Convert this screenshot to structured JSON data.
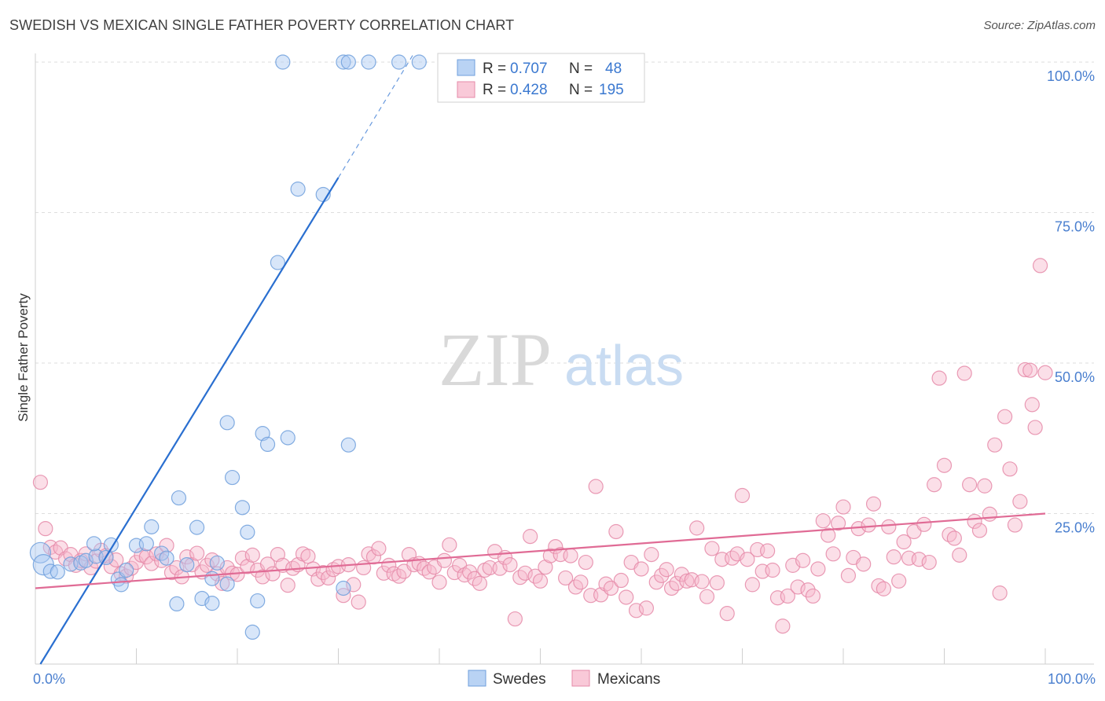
{
  "title": "SWEDISH VS MEXICAN SINGLE FATHER POVERTY CORRELATION CHART",
  "source": "Source: ZipAtlas.com",
  "watermark": {
    "zip": "ZIP",
    "atlas": "atlas"
  },
  "chart_data": {
    "type": "scatter",
    "ylabel": "Single Father Poverty",
    "xlabel": "",
    "xlim": [
      0,
      100
    ],
    "ylim": [
      0,
      100
    ],
    "x_tick_labels": {
      "min": "0.0%",
      "max": "100.0%"
    },
    "y_tick_labels": [
      "25.0%",
      "50.0%",
      "75.0%",
      "100.0%"
    ],
    "y_ticks": [
      25,
      50,
      75,
      100
    ],
    "grid": "horizontal dashed",
    "legend_top": [
      {
        "r_label": "R =",
        "r": "0.707",
        "n_label": "N =",
        "n": "48",
        "color": "#a9c8f2"
      },
      {
        "r_label": "R =",
        "r": "0.428",
        "n_label": "N =",
        "n": "195",
        "color": "#f7b8cc"
      }
    ],
    "series": [
      {
        "name": "Swedes",
        "color": "#a9c8f2",
        "stroke": "#6f9fdc",
        "trend": {
          "x0": 0.5,
          "y0": 0,
          "x1": 30,
          "y1": 80.8,
          "dash_to_x": 37.5,
          "dash_to_y": 101.5,
          "color": "#2a6fd0"
        },
        "points": [
          [
            0.5,
            18.5
          ],
          [
            0.8,
            16.5
          ],
          [
            1.5,
            15.4
          ],
          [
            2.2,
            15.3
          ],
          [
            3.5,
            16.6
          ],
          [
            4.5,
            16.8
          ],
          [
            5,
            17.2
          ],
          [
            6,
            17.9
          ],
          [
            7,
            17.7
          ],
          [
            5.8,
            20.0
          ],
          [
            7.5,
            19.8
          ],
          [
            8.2,
            14.1
          ],
          [
            9,
            15.6
          ],
          [
            8.5,
            13.2
          ],
          [
            10,
            19.7
          ],
          [
            11,
            20.0
          ],
          [
            12.5,
            18.4
          ],
          [
            13,
            17.6
          ],
          [
            11.5,
            22.8
          ],
          [
            14,
            10.0
          ],
          [
            14.2,
            27.6
          ],
          [
            15,
            16.5
          ],
          [
            16,
            22.7
          ],
          [
            16.5,
            10.9
          ],
          [
            17.5,
            10.1
          ],
          [
            17.5,
            14.2
          ],
          [
            18,
            16.8
          ],
          [
            19,
            13.3
          ],
          [
            19,
            40.1
          ],
          [
            19.5,
            31.0
          ],
          [
            20.5,
            26.0
          ],
          [
            21,
            21.9
          ],
          [
            21.5,
            5.3
          ],
          [
            22,
            10.5
          ],
          [
            22.5,
            38.3
          ],
          [
            23,
            36.5
          ],
          [
            24,
            66.7
          ],
          [
            25,
            37.6
          ],
          [
            26,
            78.9
          ],
          [
            28.5,
            78.0
          ],
          [
            31,
            36.4
          ],
          [
            24.5,
            100
          ],
          [
            30.5,
            100
          ],
          [
            31,
            100
          ],
          [
            33,
            100
          ],
          [
            36,
            100
          ],
          [
            38,
            100
          ],
          [
            30.5,
            12.6
          ]
        ]
      },
      {
        "name": "Mexicans",
        "color": "#f7b8cc",
        "stroke": "#e58aa8",
        "trend": {
          "x0": 0,
          "y0": 12.6,
          "x1": 100,
          "y1": 25.0,
          "color": "#e06b95"
        },
        "points": [
          [
            0.5,
            30.2
          ],
          [
            1.0,
            22.5
          ],
          [
            1.5,
            19.4
          ],
          [
            2.0,
            18.6
          ],
          [
            2.5,
            19.3
          ],
          [
            3.0,
            17.5
          ],
          [
            3.5,
            18.2
          ],
          [
            4.0,
            16.4
          ],
          [
            4.5,
            17.2
          ],
          [
            5.0,
            18.3
          ],
          [
            5.5,
            16.0
          ],
          [
            6.0,
            17.1
          ],
          [
            6.5,
            18.9
          ],
          [
            7.0,
            18.0
          ],
          [
            7.5,
            16.2
          ],
          [
            8.0,
            17.3
          ],
          [
            8.5,
            15.0
          ],
          [
            9.0,
            14.6
          ],
          [
            9.5,
            15.9
          ],
          [
            10.0,
            16.9
          ],
          [
            10.5,
            18.1
          ],
          [
            11.0,
            17.8
          ],
          [
            11.5,
            16.7
          ],
          [
            12.0,
            18.3
          ],
          [
            12.5,
            17.2
          ],
          [
            13.0,
            19.7
          ],
          [
            13.5,
            15.2
          ],
          [
            14.0,
            16.0
          ],
          [
            14.5,
            14.5
          ],
          [
            15.0,
            17.8
          ],
          [
            15.5,
            16.5
          ],
          [
            16.0,
            18.4
          ],
          [
            16.5,
            15.3
          ],
          [
            17.0,
            16.4
          ],
          [
            17.5,
            17.3
          ],
          [
            18.0,
            15.0
          ],
          [
            18.5,
            13.4
          ],
          [
            19.0,
            16.0
          ],
          [
            19.5,
            15.1
          ],
          [
            20.0,
            14.9
          ],
          [
            20.5,
            17.6
          ],
          [
            21.0,
            16.2
          ],
          [
            21.5,
            18.1
          ],
          [
            22.0,
            15.6
          ],
          [
            22.5,
            14.5
          ],
          [
            23.0,
            16.6
          ],
          [
            23.5,
            15.0
          ],
          [
            24.0,
            18.2
          ],
          [
            24.5,
            16.4
          ],
          [
            25.0,
            13.1
          ],
          [
            25.5,
            15.9
          ],
          [
            26.0,
            16.5
          ],
          [
            26.5,
            18.3
          ],
          [
            27.0,
            17.9
          ],
          [
            27.5,
            15.8
          ],
          [
            28.0,
            14.1
          ],
          [
            28.5,
            15.2
          ],
          [
            29.0,
            14.3
          ],
          [
            29.5,
            15.7
          ],
          [
            30.0,
            16.2
          ],
          [
            30.5,
            11.4
          ],
          [
            31.0,
            16.5
          ],
          [
            31.5,
            13.2
          ],
          [
            32.0,
            10.3
          ],
          [
            32.5,
            16.0
          ],
          [
            33.0,
            18.3
          ],
          [
            33.5,
            17.8
          ],
          [
            34.0,
            19.2
          ],
          [
            34.5,
            15.1
          ],
          [
            35.0,
            16.4
          ],
          [
            35.5,
            15.0
          ],
          [
            36.0,
            14.6
          ],
          [
            36.5,
            15.4
          ],
          [
            37.0,
            18.2
          ],
          [
            37.5,
            16.5
          ],
          [
            38.0,
            16.7
          ],
          [
            38.5,
            15.9
          ],
          [
            39.0,
            15.3
          ],
          [
            39.5,
            16.1
          ],
          [
            40.0,
            13.6
          ],
          [
            40.5,
            17.2
          ],
          [
            41.0,
            19.8
          ],
          [
            41.5,
            15.2
          ],
          [
            42.0,
            16.4
          ],
          [
            42.5,
            14.8
          ],
          [
            43.0,
            15.3
          ],
          [
            43.5,
            14.2
          ],
          [
            44.0,
            13.4
          ],
          [
            44.5,
            15.6
          ],
          [
            45.0,
            16.0
          ],
          [
            45.5,
            18.7
          ],
          [
            46.0,
            15.9
          ],
          [
            46.5,
            17.7
          ],
          [
            47.0,
            16.5
          ],
          [
            47.5,
            7.5
          ],
          [
            48.0,
            14.4
          ],
          [
            48.5,
            15.1
          ],
          [
            49.0,
            21.2
          ],
          [
            49.5,
            14.6
          ],
          [
            50.0,
            13.8
          ],
          [
            50.5,
            16.1
          ],
          [
            51.0,
            18.0
          ],
          [
            51.5,
            19.5
          ],
          [
            52.0,
            18.2
          ],
          [
            52.5,
            14.3
          ],
          [
            53.0,
            18.0
          ],
          [
            53.5,
            12.8
          ],
          [
            54.0,
            13.6
          ],
          [
            54.5,
            16.9
          ],
          [
            55.0,
            11.4
          ],
          [
            55.5,
            29.5
          ],
          [
            56.0,
            11.5
          ],
          [
            56.5,
            13.3
          ],
          [
            57.0,
            12.6
          ],
          [
            57.5,
            22.0
          ],
          [
            58.0,
            13.9
          ],
          [
            58.5,
            11.1
          ],
          [
            59.0,
            16.9
          ],
          [
            59.5,
            8.9
          ],
          [
            60.0,
            15.8
          ],
          [
            60.5,
            9.3
          ],
          [
            61.0,
            18.2
          ],
          [
            61.5,
            13.6
          ],
          [
            62.0,
            14.7
          ],
          [
            62.5,
            15.7
          ],
          [
            63.0,
            12.6
          ],
          [
            63.5,
            13.4
          ],
          [
            64.0,
            14.9
          ],
          [
            64.5,
            13.8
          ],
          [
            65.0,
            14.0
          ],
          [
            65.5,
            22.6
          ],
          [
            66.0,
            13.7
          ],
          [
            66.5,
            11.2
          ],
          [
            67.0,
            19.2
          ],
          [
            67.5,
            13.5
          ],
          [
            68.0,
            17.4
          ],
          [
            68.5,
            8.4
          ],
          [
            69.0,
            17.6
          ],
          [
            69.5,
            18.3
          ],
          [
            70.0,
            28.0
          ],
          [
            70.5,
            17.4
          ],
          [
            71.0,
            13.2
          ],
          [
            71.5,
            19.0
          ],
          [
            72.0,
            15.4
          ],
          [
            72.5,
            18.8
          ],
          [
            73.0,
            15.6
          ],
          [
            73.5,
            11.0
          ],
          [
            74.0,
            6.3
          ],
          [
            74.5,
            11.3
          ],
          [
            75.0,
            16.4
          ],
          [
            75.5,
            12.8
          ],
          [
            76.0,
            17.2
          ],
          [
            76.5,
            12.3
          ],
          [
            77.0,
            11.3
          ],
          [
            77.5,
            15.8
          ],
          [
            78.0,
            23.8
          ],
          [
            78.5,
            21.4
          ],
          [
            79.0,
            18.3
          ],
          [
            79.5,
            23.4
          ],
          [
            80.0,
            26.1
          ],
          [
            80.5,
            14.7
          ],
          [
            81.0,
            17.7
          ],
          [
            81.5,
            22.5
          ],
          [
            82.0,
            16.6
          ],
          [
            82.5,
            23.1
          ],
          [
            83.0,
            26.6
          ],
          [
            83.5,
            13.0
          ],
          [
            84.0,
            12.5
          ],
          [
            84.5,
            22.8
          ],
          [
            85.0,
            17.8
          ],
          [
            85.5,
            13.8
          ],
          [
            86.0,
            20.3
          ],
          [
            86.5,
            17.6
          ],
          [
            87.0,
            22.0
          ],
          [
            87.5,
            17.4
          ],
          [
            88.0,
            23.2
          ],
          [
            88.5,
            16.9
          ],
          [
            89.0,
            29.8
          ],
          [
            89.5,
            47.5
          ],
          [
            90.0,
            33.0
          ],
          [
            90.5,
            21.5
          ],
          [
            91.0,
            20.9
          ],
          [
            91.5,
            18.1
          ],
          [
            92.0,
            48.3
          ],
          [
            92.5,
            29.8
          ],
          [
            93.0,
            23.7
          ],
          [
            93.5,
            22.2
          ],
          [
            94.0,
            29.6
          ],
          [
            94.5,
            24.9
          ],
          [
            95.0,
            36.4
          ],
          [
            95.5,
            11.8
          ],
          [
            96.0,
            41.1
          ],
          [
            96.5,
            32.4
          ],
          [
            97.0,
            23.1
          ],
          [
            97.5,
            27.0
          ],
          [
            98.0,
            48.9
          ],
          [
            98.5,
            48.8
          ],
          [
            98.7,
            43.1
          ],
          [
            99.0,
            39.3
          ],
          [
            99.5,
            66.2
          ],
          [
            100.0,
            48.4
          ]
        ]
      }
    ]
  }
}
